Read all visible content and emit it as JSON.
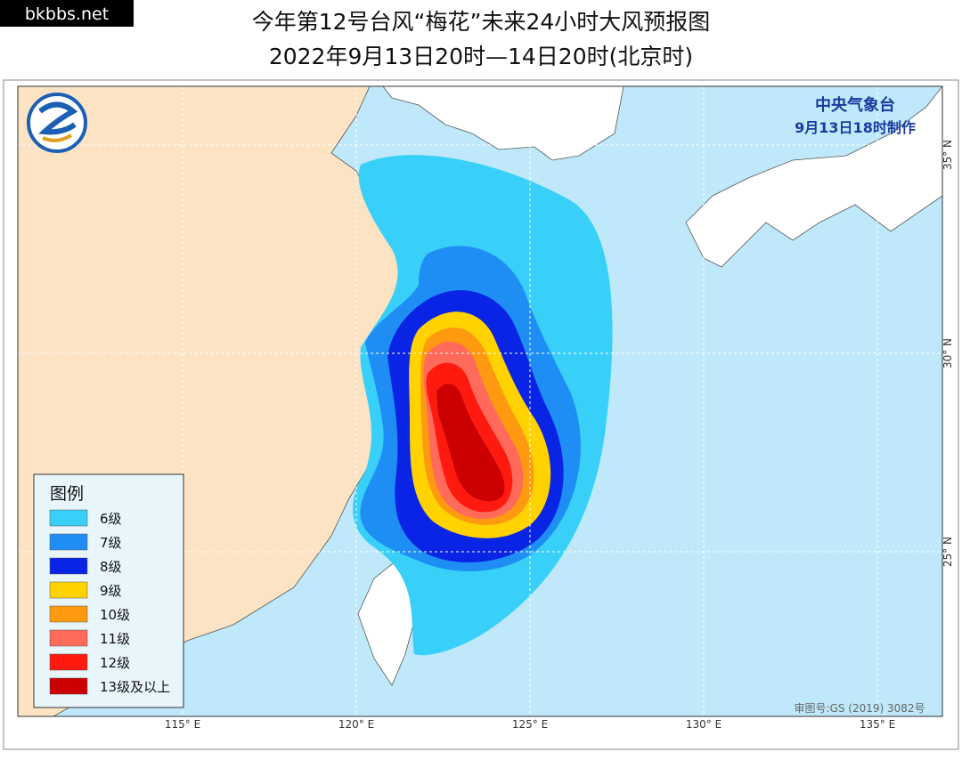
{
  "watermark": "bkbbs.net",
  "header": {
    "title": "今年第12号台风“梅花”未来24小时大风预报图",
    "subtitle": "2022年9月13日20时—14日20时(北京时)"
  },
  "issuer": {
    "name": "中央气象台",
    "time": "9月13日18时制作"
  },
  "legend": {
    "title": "图例",
    "items": [
      {
        "label": "6级",
        "color": "#38d0f8"
      },
      {
        "label": "7级",
        "color": "#1e8ef5"
      },
      {
        "label": "8级",
        "color": "#0a24e6"
      },
      {
        "label": "9级",
        "color": "#ffd200"
      },
      {
        "label": "10级",
        "color": "#ff9a10"
      },
      {
        "label": "11级",
        "color": "#ff6a5a"
      },
      {
        "label": "12级",
        "color": "#ff1a10"
      },
      {
        "label": "13级及以上",
        "color": "#cc0000"
      }
    ]
  },
  "axes": {
    "longitude": [
      "115° E",
      "120° E",
      "125° E",
      "130° E",
      "135° E"
    ],
    "latitude": [
      "35° N",
      "30° N",
      "25° N"
    ]
  },
  "approval": "审图号:GS (2019) 3082号"
}
